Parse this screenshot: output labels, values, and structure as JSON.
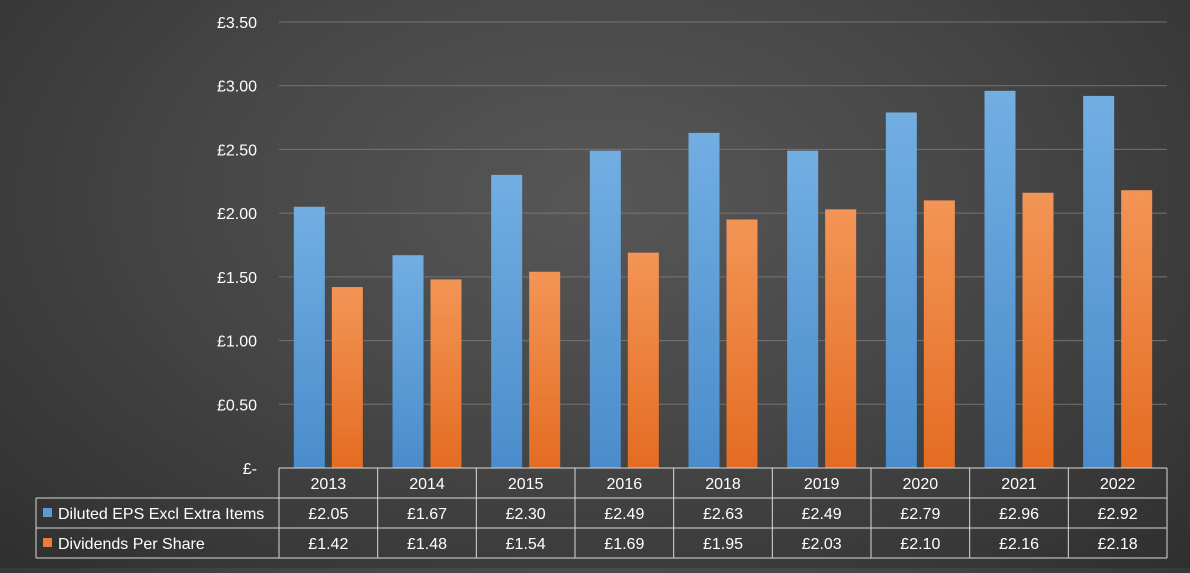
{
  "chart_data": {
    "type": "bar",
    "title": "",
    "xlabel": "",
    "ylabel": "",
    "categories": [
      "2013",
      "2014",
      "2015",
      "2016",
      "2018",
      "2019",
      "2020",
      "2021",
      "2022"
    ],
    "ylim": [
      0,
      3.5
    ],
    "yticks": [
      {
        "value": 3.5,
        "label": "£3.50"
      },
      {
        "value": 3.0,
        "label": "£3.00"
      },
      {
        "value": 2.5,
        "label": "£2.50"
      },
      {
        "value": 2.0,
        "label": "£2.00"
      },
      {
        "value": 1.5,
        "label": "£1.50"
      },
      {
        "value": 1.0,
        "label": "£1.00"
      },
      {
        "value": 0.5,
        "label": "£0.50"
      },
      {
        "value": 0,
        "label": "£-"
      }
    ],
    "grid": true,
    "legend": "data-table",
    "series": [
      {
        "name": "Diluted EPS Excl Extra Items",
        "color": "#5b9bd5",
        "values": [
          2.05,
          1.67,
          2.3,
          2.49,
          2.63,
          2.49,
          2.79,
          2.96,
          2.92
        ],
        "labels": [
          "£2.05",
          "£1.67",
          "£2.30",
          "£2.49",
          "£2.63",
          "£2.49",
          "£2.79",
          "£2.96",
          "£2.92"
        ]
      },
      {
        "name": "Dividends Per Share",
        "color": "#ed7d31",
        "values": [
          1.42,
          1.48,
          1.54,
          1.69,
          1.95,
          2.03,
          2.1,
          2.16,
          2.18
        ],
        "labels": [
          "£1.42",
          "£1.48",
          "£1.54",
          "£1.69",
          "£1.95",
          "£2.03",
          "£2.10",
          "£2.16",
          "£2.18"
        ]
      }
    ]
  }
}
